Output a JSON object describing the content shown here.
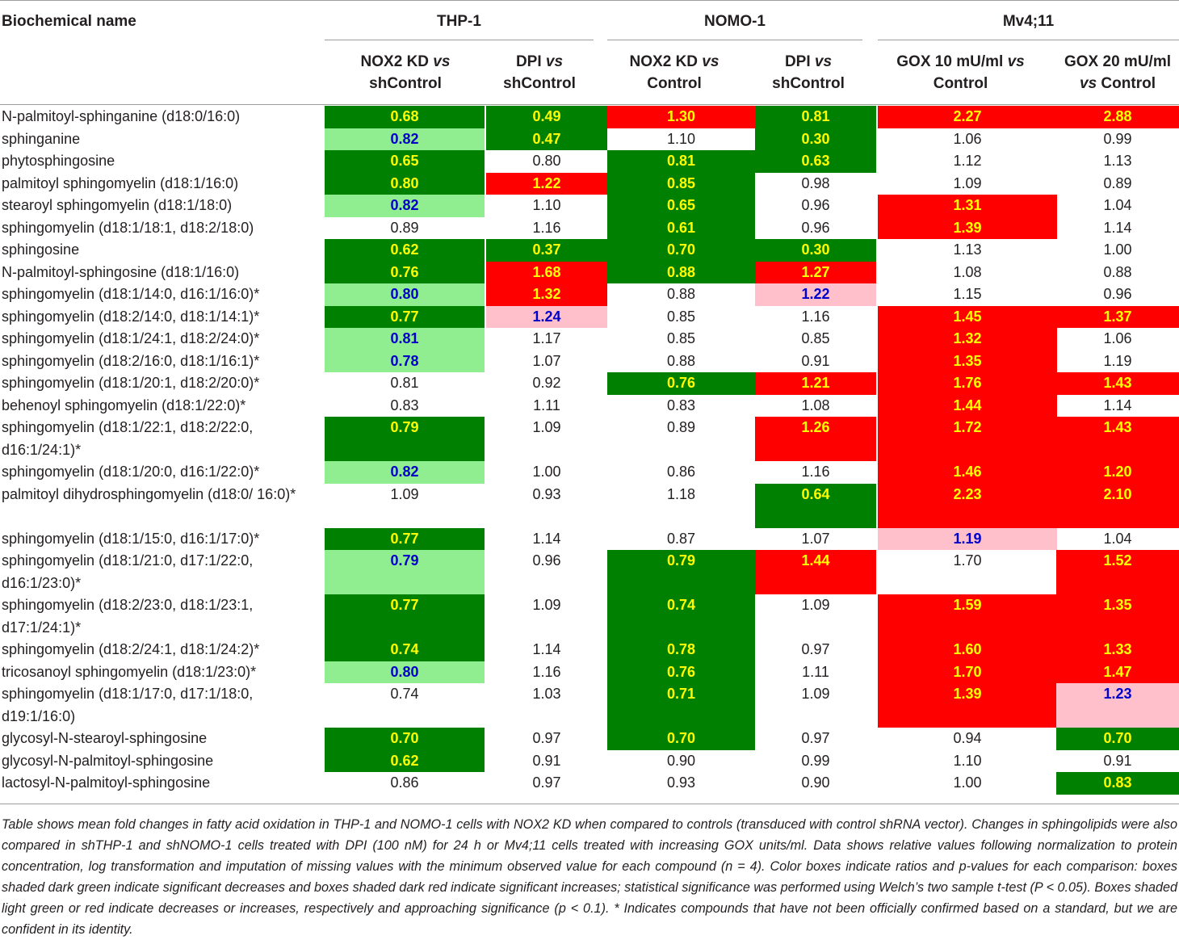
{
  "header": {
    "first_col": "Biochemical name",
    "groups": [
      "THP-1",
      "NOMO-1",
      "Mv4;11"
    ],
    "columns": [
      [
        "NOX2 KD ",
        "vs",
        "shControl"
      ],
      [
        "DPI ",
        "vs",
        "shControl"
      ],
      [
        "NOX2 KD ",
        "vs",
        "Control"
      ],
      [
        "DPI ",
        "vs",
        "shControl"
      ],
      [
        "GOX 10 mU/ml ",
        "vs",
        "Control"
      ],
      [
        "GOX 20 mU/ml",
        "vs",
        " Control"
      ]
    ]
  },
  "rows": [
    {
      "name": "N-palmitoyl-sphinganine (d18:0/16:0)",
      "values": [
        "0.68",
        "0.49",
        "1.30",
        "0.81",
        "2.27",
        "2.88"
      ],
      "shade": [
        "dg",
        "dg",
        "dr",
        "dg",
        "dr",
        "dr"
      ]
    },
    {
      "name": "sphinganine",
      "values": [
        "0.82",
        "0.47",
        "1.10",
        "0.30",
        "1.06",
        "0.99"
      ],
      "shade": [
        "lg",
        "dg",
        "nn",
        "dg",
        "nn",
        "nn"
      ]
    },
    {
      "name": "phytosphingosine",
      "values": [
        "0.65",
        "0.80",
        "0.81",
        "0.63",
        "1.12",
        "1.13"
      ],
      "shade": [
        "dg",
        "nn",
        "dg",
        "dg",
        "nn",
        "nn"
      ]
    },
    {
      "name": "palmitoyl sphingomyelin (d18:1/16:0)",
      "values": [
        "0.80",
        "1.22",
        "0.85",
        "0.98",
        "1.09",
        "0.89"
      ],
      "shade": [
        "dg",
        "dr",
        "dg",
        "nn",
        "nn",
        "nn"
      ]
    },
    {
      "name": "stearoyl sphingomyelin (d18:1/18:0)",
      "values": [
        "0.82",
        "1.10",
        "0.65",
        "0.96",
        "1.31",
        "1.04"
      ],
      "shade": [
        "lg",
        "nn",
        "dg",
        "nn",
        "dr",
        "nn"
      ]
    },
    {
      "name": "sphingomyelin (d18:1/18:1, d18:2/18:0)",
      "values": [
        "0.89",
        "1.16",
        "0.61",
        "0.96",
        "1.39",
        "1.14"
      ],
      "shade": [
        "nn",
        "nn",
        "dg",
        "nn",
        "dr",
        "nn"
      ]
    },
    {
      "name": "sphingosine",
      "values": [
        "0.62",
        "0.37",
        "0.70",
        "0.30",
        "1.13",
        "1.00"
      ],
      "shade": [
        "dg",
        "dg",
        "dg",
        "dg",
        "nn",
        "nn"
      ]
    },
    {
      "name": "N-palmitoyl-sphingosine (d18:1/16:0)",
      "values": [
        "0.76",
        "1.68",
        "0.88",
        "1.27",
        "1.08",
        "0.88"
      ],
      "shade": [
        "dg",
        "dr",
        "dg",
        "dr",
        "nn",
        "nn"
      ]
    },
    {
      "name": "sphingomyelin (d18:1/14:0, d16:1/16:0)*",
      "values": [
        "0.80",
        "1.32",
        "0.88",
        "1.22",
        "1.15",
        "0.96"
      ],
      "shade": [
        "lg",
        "dr",
        "nn",
        "lr",
        "nn",
        "nn"
      ]
    },
    {
      "name": "sphingomyelin (d18:2/14:0, d18:1/14:1)*",
      "values": [
        "0.77",
        "1.24",
        "0.85",
        "1.16",
        "1.45",
        "1.37"
      ],
      "shade": [
        "dg",
        "lr",
        "nn",
        "nn",
        "dr",
        "dr"
      ]
    },
    {
      "name": "sphingomyelin (d18:1/24:1, d18:2/24:0)*",
      "values": [
        "0.81",
        "1.17",
        "0.85",
        "0.85",
        "1.32",
        "1.06"
      ],
      "shade": [
        "lg",
        "nn",
        "nn",
        "nn",
        "dr",
        "nn"
      ]
    },
    {
      "name": "sphingomyelin (d18:2/16:0, d18:1/16:1)*",
      "values": [
        "0.78",
        "1.07",
        "0.88",
        "0.91",
        "1.35",
        "1.19"
      ],
      "shade": [
        "lg",
        "nn",
        "nn",
        "nn",
        "dr",
        "nn"
      ]
    },
    {
      "name": "sphingomyelin (d18:1/20:1, d18:2/20:0)*",
      "values": [
        "0.81",
        "0.92",
        "0.76",
        "1.21",
        "1.76",
        "1.43"
      ],
      "shade": [
        "nn",
        "nn",
        "dg",
        "dr",
        "dr",
        "dr"
      ]
    },
    {
      "name": "behenoyl sphingomyelin (d18:1/22:0)*",
      "values": [
        "0.83",
        "1.11",
        "0.83",
        "1.08",
        "1.44",
        "1.14"
      ],
      "shade": [
        "nn",
        "nn",
        "nn",
        "nn",
        "dr",
        "nn"
      ]
    },
    {
      "name": "sphingomyelin (d18:1/22:1, d18:2/22:0, d16:1/24:1)*",
      "values": [
        "0.79",
        "1.09",
        "0.89",
        "1.26",
        "1.72",
        "1.43"
      ],
      "shade": [
        "dg",
        "nn",
        "nn",
        "dr",
        "dr",
        "dr"
      ]
    },
    {
      "name": "sphingomyelin (d18:1/20:0, d16:1/22:0)*",
      "values": [
        "0.82",
        "1.00",
        "0.86",
        "1.16",
        "1.46",
        "1.20"
      ],
      "shade": [
        "lg",
        "nn",
        "nn",
        "nn",
        "dr",
        "dr"
      ]
    },
    {
      "name": "palmitoyl dihydrosphingomyelin (d18:0/ 16:0)*",
      "values": [
        "1.09",
        "0.93",
        "1.18",
        "0.64",
        "2.23",
        "2.10"
      ],
      "shade": [
        "nn",
        "nn",
        "nn",
        "dg",
        "dr",
        "dr"
      ]
    },
    {
      "name": "sphingomyelin (d18:1/15:0, d16:1/17:0)*",
      "values": [
        "0.77",
        "1.14",
        "0.87",
        "1.07",
        "1.19",
        "1.04"
      ],
      "shade": [
        "dg",
        "nn",
        "nn",
        "nn",
        "lr",
        "nn"
      ]
    },
    {
      "name": "sphingomyelin (d18:1/21:0, d17:1/22:0, d16:1/23:0)*",
      "values": [
        "0.79",
        "0.96",
        "0.79",
        "1.44",
        "1.70",
        "1.52"
      ],
      "shade": [
        "lg",
        "nn",
        "dg",
        "dr",
        "nn",
        "dr"
      ]
    },
    {
      "name": "sphingomyelin (d18:2/23:0, d18:1/23:1, d17:1/24:1)*",
      "values": [
        "0.77",
        "1.09",
        "0.74",
        "1.09",
        "1.59",
        "1.35"
      ],
      "shade": [
        "dg",
        "nn",
        "dg",
        "nn",
        "dr",
        "dr"
      ]
    },
    {
      "name": "sphingomyelin (d18:2/24:1, d18:1/24:2)*",
      "values": [
        "0.74",
        "1.14",
        "0.78",
        "0.97",
        "1.60",
        "1.33"
      ],
      "shade": [
        "dg",
        "nn",
        "dg",
        "nn",
        "dr",
        "dr"
      ]
    },
    {
      "name": "tricosanoyl sphingomyelin (d18:1/23:0)*",
      "values": [
        "0.80",
        "1.16",
        "0.76",
        "1.11",
        "1.70",
        "1.47"
      ],
      "shade": [
        "lg",
        "nn",
        "dg",
        "nn",
        "dr",
        "dr"
      ]
    },
    {
      "name": "sphingomyelin (d18:1/17:0, d17:1/18:0, d19:1/16:0)",
      "values": [
        "0.74",
        "1.03",
        "0.71",
        "1.09",
        "1.39",
        "1.23"
      ],
      "shade": [
        "nn",
        "nn",
        "dg",
        "nn",
        "dr",
        "lr"
      ]
    },
    {
      "name": "glycosyl-N-stearoyl-sphingosine",
      "values": [
        "0.70",
        "0.97",
        "0.70",
        "0.97",
        "0.94",
        "0.70"
      ],
      "shade": [
        "dg",
        "nn",
        "dg",
        "nn",
        "nn",
        "dg"
      ]
    },
    {
      "name": "glycosyl-N-palmitoyl-sphingosine",
      "values": [
        "0.62",
        "0.91",
        "0.90",
        "0.99",
        "1.10",
        "0.91"
      ],
      "shade": [
        "dg",
        "nn",
        "nn",
        "nn",
        "nn",
        "nn"
      ]
    },
    {
      "name": "lactosyl-N-palmitoyl-sphingosine",
      "values": [
        "0.86",
        "0.97",
        "0.93",
        "0.90",
        "1.00",
        "0.83"
      ],
      "shade": [
        "nn",
        "nn",
        "nn",
        "nn",
        "nn",
        "dg"
      ]
    }
  ],
  "footnote": "Table shows mean fold changes in fatty acid oxidation in THP-1 and NOMO-1 cells with NOX2 KD when compared to controls (transduced with control shRNA vector). Changes in sphingolipids were also compared in shTHP-1 and shNOMO-1 cells treated with DPI (100 nM) for 24 h or Mv4;11 cells treated with increasing GOX units/ml. Data shows relative values following normalization to protein concentration, log transformation and imputation of missing values with the minimum observed value for each compound (n = 4). Color boxes indicate ratios and p-values for each comparison: boxes shaded dark green indicate significant decreases and boxes shaded dark red indicate significant increases; statistical significance was performed using Welch’s two sample t-test (P < 0.05). Boxes shaded light green or red indicate decreases or increases, respectively and approaching significance (p < 0.1). * Indicates compounds that have not been officially confirmed based on a standard, but we are confident in its identity."
}
